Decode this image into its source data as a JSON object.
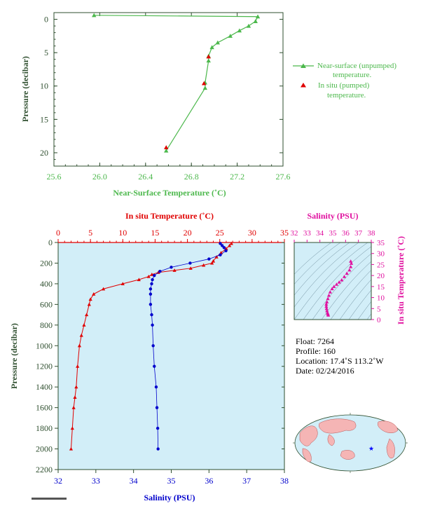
{
  "top_chart": {
    "xlabel": "Near-Surface Temperature (˚C)",
    "ylabel": "Pressure (decibar)",
    "xticks": [
      "25.6",
      "26.0",
      "26.4",
      "26.8",
      "27.2",
      "27.6"
    ],
    "yticks": [
      "0",
      "5",
      "10",
      "15",
      "20"
    ],
    "legend": {
      "near_surface_1": "Near-surface (unpumped)",
      "near_surface_2": "temperature.",
      "in_situ_1": "In situ (pumped)",
      "in_situ_2": "temperature."
    },
    "colors": {
      "green": "#4cb84c",
      "red": "#e00000",
      "axis": "#2f4f2f"
    }
  },
  "main_chart": {
    "top_label": "In situ Temperature (˚C)",
    "bottom_label": "Salinity (PSU)",
    "ylabel": "Pressure (decibar)",
    "temp_ticks": [
      "0",
      "5",
      "10",
      "15",
      "20",
      "25",
      "30",
      "35"
    ],
    "sal_ticks": [
      "32",
      "33",
      "34",
      "35",
      "36",
      "37",
      "38"
    ],
    "pres_ticks": [
      "0",
      "200",
      "400",
      "600",
      "800",
      "1000",
      "1200",
      "1400",
      "1600",
      "1800",
      "2000",
      "2200"
    ],
    "colors": {
      "temp": "#e00000",
      "sal": "#0000cc",
      "bg": "#d2eef8"
    }
  },
  "ts_chart": {
    "title": "Salinity (PSU)",
    "ylabel": "In situ Temperature (˚C)",
    "sal_ticks": [
      "32",
      "33",
      "34",
      "35",
      "36",
      "37",
      "38"
    ],
    "temp_ticks": [
      "0",
      "5",
      "10",
      "15",
      "20",
      "25",
      "30",
      "35"
    ],
    "color": "#e0109f"
  },
  "info": {
    "float": "Float:  7264",
    "profile": "Profile:  160",
    "location": "Location:  17.4˚S  113.2˚W",
    "date": "Date:  02/24/2016"
  },
  "chart_data": [
    {
      "type": "line",
      "title": "",
      "xlabel": "Near-Surface Temperature (˚C)",
      "ylabel": "Pressure (decibar)",
      "xlim": [
        25.6,
        27.6
      ],
      "ylim": [
        22,
        -1
      ],
      "series": [
        {
          "name": "Near-surface (unpumped) temperature.",
          "x": [
            25.95,
            27.38,
            27.36,
            27.3,
            27.22,
            27.14,
            27.03,
            26.98,
            26.95,
            26.95,
            26.92,
            26.92,
            26.58
          ],
          "y": [
            -0.6,
            -0.4,
            0.3,
            1.0,
            1.7,
            2.5,
            3.5,
            4.2,
            5.5,
            6.2,
            9.5,
            10.3,
            19.7
          ]
        },
        {
          "name": "In situ (pumped) temperature.",
          "x": [
            26.95,
            26.91,
            26.58
          ],
          "y": [
            5.6,
            9.6,
            19.2
          ]
        }
      ]
    },
    {
      "type": "line",
      "title": "",
      "xlabel": "Salinity (PSU)",
      "ylabel": "Pressure (decibar)",
      "ylim": [
        2200,
        0
      ],
      "series": [
        {
          "name": "In situ Temperature (˚C)",
          "xlim": [
            0,
            35
          ],
          "x": [
            26.8,
            26.5,
            26,
            25.2,
            24.5,
            24,
            23.8,
            22.5,
            20.5,
            18,
            15.5,
            14.5,
            14,
            12.5,
            10,
            7,
            5.5,
            5.0,
            4.8,
            4.4,
            4.0,
            3.6,
            3.3,
            3.0,
            2.8,
            2.6,
            2.4,
            2.2,
            2.0
          ],
          "y": [
            10,
            30,
            60,
            100,
            140,
            180,
            200,
            220,
            250,
            270,
            290,
            310,
            330,
            360,
            400,
            450,
            500,
            550,
            600,
            700,
            800,
            900,
            1000,
            1200,
            1400,
            1500,
            1600,
            1800,
            2000
          ]
        },
        {
          "name": "Salinity (PSU)",
          "xlim": [
            32,
            38
          ],
          "x": [
            36.3,
            36.35,
            36.4,
            36.45,
            36.3,
            36.0,
            35.5,
            35.0,
            34.7,
            34.55,
            34.5,
            34.48,
            34.45,
            34.45,
            34.45,
            34.48,
            34.5,
            34.52,
            34.55,
            34.6,
            34.62,
            34.64,
            34.65
          ],
          "y": [
            10,
            30,
            50,
            80,
            120,
            160,
            200,
            240,
            280,
            320,
            360,
            400,
            450,
            500,
            600,
            700,
            800,
            1000,
            1200,
            1400,
            1600,
            1800,
            2000
          ]
        }
      ]
    },
    {
      "type": "scatter",
      "title": "Salinity (PSU)",
      "xlabel": "Salinity (PSU)",
      "ylabel": "In situ Temperature (˚C)",
      "xlim": [
        32,
        38
      ],
      "ylim": [
        0,
        35
      ],
      "series": [
        {
          "name": "T-S",
          "x": [
            36.4,
            36.45,
            36.4,
            36.3,
            36.1,
            35.9,
            35.7,
            35.5,
            35.3,
            35.1,
            34.95,
            34.8,
            34.7,
            34.62,
            34.55,
            34.5,
            34.5,
            34.52,
            34.55,
            34.6,
            34.63,
            34.65
          ],
          "y": [
            26.5,
            25.5,
            24,
            22.5,
            21,
            19.5,
            18,
            17,
            16,
            15,
            14,
            12.5,
            11,
            9.5,
            8,
            7,
            6,
            5,
            4,
            3,
            2.5,
            2
          ]
        }
      ]
    }
  ]
}
